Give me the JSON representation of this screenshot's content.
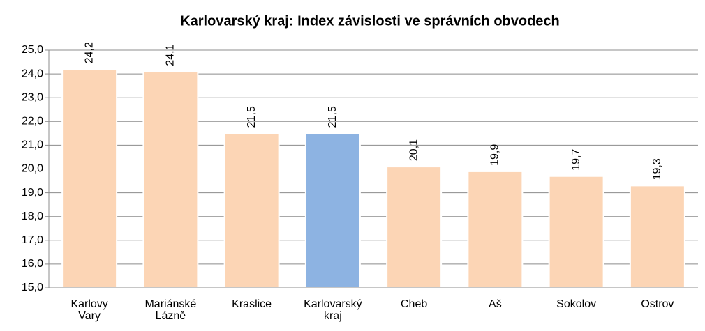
{
  "chart_data": {
    "type": "bar",
    "title": "Karlovarský kraj: Index závislosti ve správních obvodech",
    "categories": [
      "Karlovy Vary",
      "Mariánské Lázně",
      "Kraslice",
      "Karlovarský kraj",
      "Cheb",
      "Aš",
      "Sokolov",
      "Ostrov"
    ],
    "values": [
      24.2,
      24.1,
      21.5,
      21.5,
      20.1,
      19.9,
      19.7,
      19.3
    ],
    "value_labels": [
      "24,2",
      "24,1",
      "21,5",
      "21,5",
      "20,1",
      "19,9",
      "19,7",
      "19,3"
    ],
    "colors": [
      "#fcd5b5",
      "#fcd5b5",
      "#fcd5b5",
      "#8db3e2",
      "#fcd5b5",
      "#fcd5b5",
      "#fcd5b5",
      "#fcd5b5"
    ],
    "ylim": [
      15,
      25
    ],
    "yticks": [
      {
        "value": 15,
        "label": "15,0"
      },
      {
        "value": 16,
        "label": "16,0"
      },
      {
        "value": 17,
        "label": "17,0"
      },
      {
        "value": 18,
        "label": "18,0"
      },
      {
        "value": 19,
        "label": "19,0"
      },
      {
        "value": 20,
        "label": "20,0"
      },
      {
        "value": 21,
        "label": "21,0"
      },
      {
        "value": 22,
        "label": "22,0"
      },
      {
        "value": 23,
        "label": "23,0"
      },
      {
        "value": 24,
        "label": "24,0"
      },
      {
        "value": 25,
        "label": "25,0"
      }
    ],
    "grid": true
  }
}
